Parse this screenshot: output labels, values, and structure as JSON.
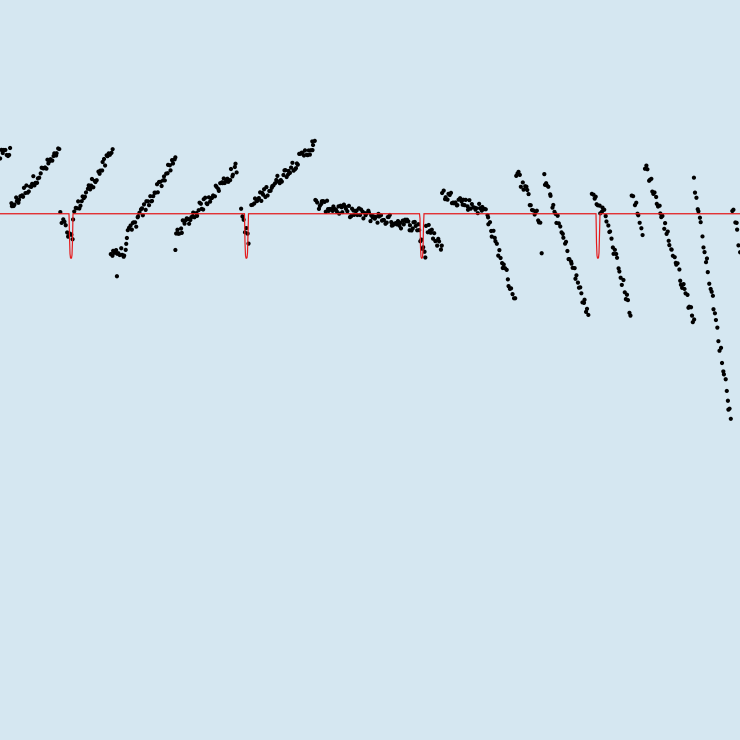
{
  "chart_data": {
    "type": "scatter",
    "title": "",
    "xlabel": "",
    "ylabel": "",
    "xlim": [
      0,
      100
    ],
    "ylim": [
      -3.2,
      1.3
    ],
    "grid": false,
    "legend": "none",
    "colors": {
      "background": "#d5e7f1",
      "points": "#000000",
      "model": "#e41a1c"
    },
    "model_line": {
      "name": "",
      "baseline": 0,
      "transit_depth": -0.27,
      "transit_width": 0.25,
      "transit_centers": [
        9.6,
        33.3,
        57.0,
        80.8
      ]
    },
    "segments": [
      {
        "x_start": 0.0,
        "x_end": 1.4,
        "y_start": 0.35,
        "y_end": 0.38
      },
      {
        "x_start": 1.5,
        "x_end": 8.0,
        "y_start": 0.04,
        "y_end": 0.38
      },
      {
        "x_start": 8.2,
        "x_end": 9.8,
        "y_start": -0.02,
        "y_end": -0.18
      },
      {
        "x_start": 9.9,
        "x_end": 15.2,
        "y_start": 0.0,
        "y_end": 0.38
      },
      {
        "x_start": 15.0,
        "x_end": 17.0,
        "y_start": -0.22,
        "y_end": -0.25
      },
      {
        "x_start": 17.0,
        "x_end": 23.7,
        "y_start": -0.15,
        "y_end": 0.33
      },
      {
        "x_start": 23.8,
        "x_end": 32.0,
        "y_start": -0.12,
        "y_end": 0.28
      },
      {
        "x_start": 32.6,
        "x_end": 33.6,
        "y_start": 0.02,
        "y_end": -0.18
      },
      {
        "x_start": 34.0,
        "x_end": 42.5,
        "y_start": 0.05,
        "y_end": 0.42
      },
      {
        "x_start": 42.6,
        "x_end": 56.7,
        "y_start": 0.06,
        "y_end": -0.08
      },
      {
        "x_start": 56.8,
        "x_end": 57.5,
        "y_start": -0.15,
        "y_end": -0.25
      },
      {
        "x_start": 57.6,
        "x_end": 59.7,
        "y_start": -0.08,
        "y_end": -0.2
      },
      {
        "x_start": 59.8,
        "x_end": 66.0,
        "y_start": 0.12,
        "y_end": 0.01
      },
      {
        "x_start": 66.0,
        "x_end": 69.6,
        "y_start": -0.05,
        "y_end": -0.52
      },
      {
        "x_start": 69.8,
        "x_end": 73.0,
        "y_start": 0.26,
        "y_end": -0.06
      },
      {
        "x_start": 73.5,
        "x_end": 79.5,
        "y_start": 0.22,
        "y_end": -0.62
      },
      {
        "x_start": 80.0,
        "x_end": 81.8,
        "y_start": 0.12,
        "y_end": -0.01
      },
      {
        "x_start": 82.0,
        "x_end": 85.2,
        "y_start": -0.05,
        "y_end": -0.6
      },
      {
        "x_start": 85.4,
        "x_end": 86.8,
        "y_start": 0.13,
        "y_end": -0.12
      },
      {
        "x_start": 87.2,
        "x_end": 93.8,
        "y_start": 0.3,
        "y_end": -0.65
      },
      {
        "x_start": 93.8,
        "x_end": 98.8,
        "y_start": 0.19,
        "y_end": -1.25
      },
      {
        "x_start": 99.0,
        "x_end": 100.0,
        "y_start": 0.05,
        "y_end": -0.2
      }
    ],
    "outliers": [
      {
        "x": 15.8,
        "y": -0.38
      },
      {
        "x": 23.7,
        "y": -0.22
      },
      {
        "x": 73.2,
        "y": -0.24
      },
      {
        "x": 42.2,
        "y": 0.44
      }
    ]
  }
}
